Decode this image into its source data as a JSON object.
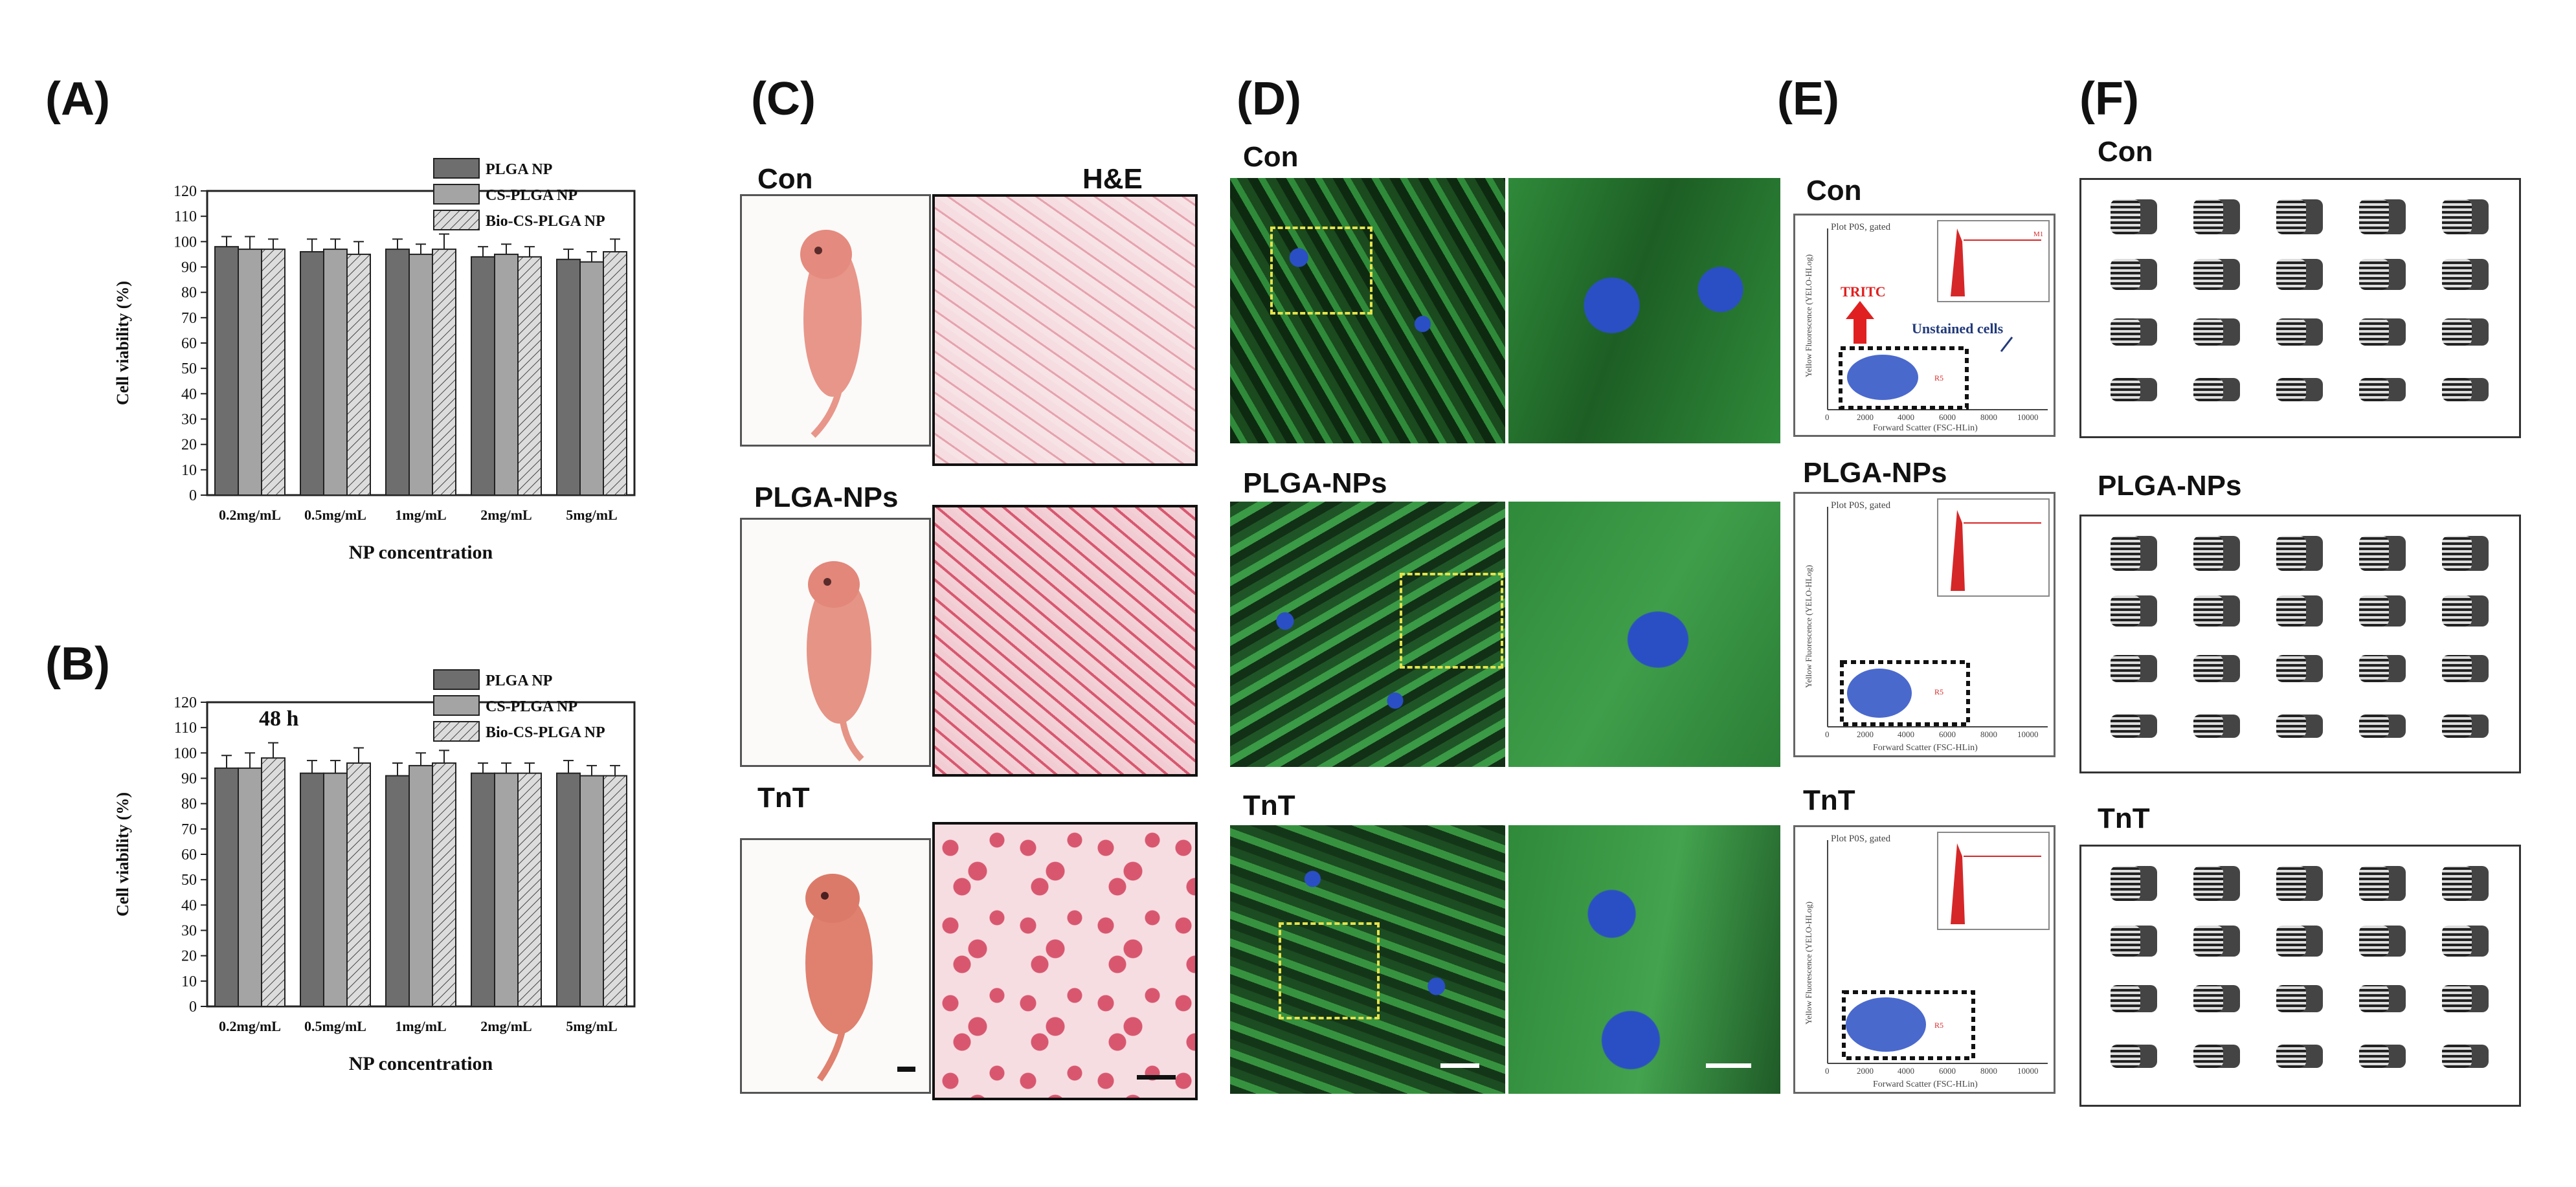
{
  "figure": {
    "panels": {
      "A": "(A)",
      "B": "(B)",
      "C": "(C)",
      "D": "(D)",
      "E": "(E)",
      "F": "(F)"
    },
    "row_labels": {
      "con": "Con",
      "plga": "PLGA-NPs",
      "tnt": "TnT"
    },
    "he_title": "H&E",
    "flow": {
      "plot_title": "Plot P0S, gated",
      "y_axis_label": "Yellow Fluorescence (YELO-HLog)",
      "x_axis_label": "Forward Scatter (FSC-HLin)",
      "x_ticks": [
        "0",
        "2000",
        "4000",
        "6000",
        "8000",
        "10000"
      ],
      "gate_label": "R5",
      "tritc_label": "TRITC",
      "unstained_label": "Unstained cells",
      "inset_x_label": "Yellow Fluorescence (YELO-HLog)",
      "inset_marker": "M1"
    },
    "colors": {
      "series1": "#6e6e6e",
      "series2": "#a4a4a4",
      "series3": "#dcdcdc",
      "gfp_green": "#2f8a3a",
      "nucleus_blue": "#2a4fc4",
      "he_pink": "#d8576f",
      "flow_red": "#d62728",
      "tritc_arrow": "#e02020",
      "roi_yellow": "#e6e24a"
    }
  },
  "chart_data": [
    {
      "type": "bar",
      "panel": "A",
      "annotation": "",
      "categories": [
        "0.2mg/mL",
        "0.5mg/mL",
        "1mg/mL",
        "2mg/mL",
        "5mg/mL"
      ],
      "series": [
        {
          "name": "PLGA NP",
          "values": [
            98,
            96,
            97,
            94,
            93
          ],
          "errors": [
            4,
            5,
            4,
            4,
            4
          ]
        },
        {
          "name": "CS-PLGA NP",
          "values": [
            97,
            97,
            95,
            95,
            92
          ],
          "errors": [
            5,
            4,
            4,
            4,
            4
          ]
        },
        {
          "name": "Bio-CS-PLGA NP",
          "values": [
            97,
            95,
            97,
            94,
            96
          ],
          "errors": [
            4,
            5,
            6,
            4,
            5
          ]
        }
      ],
      "xlabel": "NP concentration",
      "ylabel": "Cell viability (%)",
      "ylim": [
        0,
        120
      ],
      "yticks": [
        "0",
        "10",
        "20",
        "30",
        "40",
        "50",
        "60",
        "70",
        "80",
        "90",
        "100",
        "110",
        "120"
      ],
      "legend": "top-right"
    },
    {
      "type": "bar",
      "panel": "B",
      "annotation": "48 h",
      "categories": [
        "0.2mg/mL",
        "0.5mg/mL",
        "1mg/mL",
        "2mg/mL",
        "5mg/mL"
      ],
      "series": [
        {
          "name": "PLGA NP",
          "values": [
            94,
            92,
            91,
            92,
            92
          ],
          "errors": [
            5,
            5,
            5,
            4,
            5
          ]
        },
        {
          "name": "CS-PLGA NP",
          "values": [
            94,
            92,
            95,
            92,
            91
          ],
          "errors": [
            6,
            5,
            5,
            4,
            4
          ]
        },
        {
          "name": "Bio-CS-PLGA NP",
          "values": [
            98,
            96,
            96,
            92,
            91
          ],
          "errors": [
            6,
            6,
            5,
            4,
            4
          ]
        }
      ],
      "xlabel": "NP concentration",
      "ylabel": "Cell viability (%)",
      "ylim": [
        0,
        120
      ],
      "yticks": [
        "0",
        "10",
        "20",
        "30",
        "40",
        "50",
        "60",
        "70",
        "80",
        "90",
        "100",
        "110",
        "120"
      ],
      "legend": "top-right"
    }
  ]
}
